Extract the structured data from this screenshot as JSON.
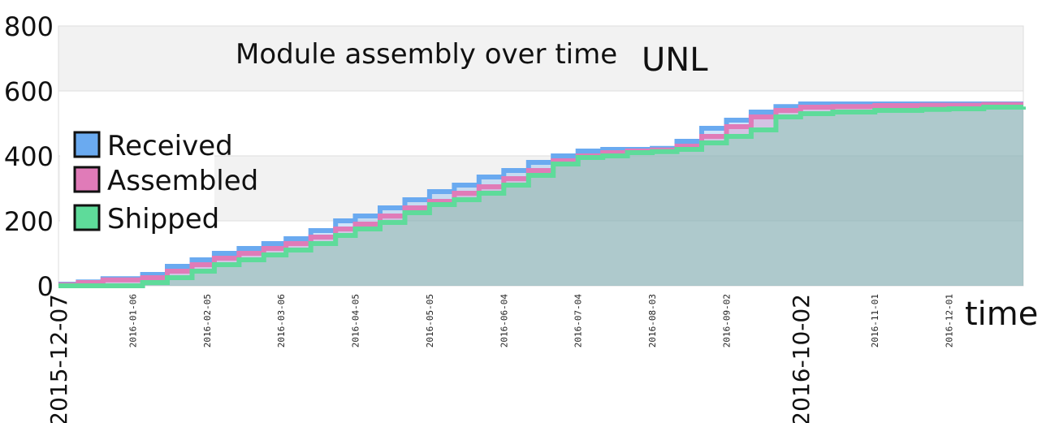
{
  "chart_data": {
    "type": "area",
    "title": "Module assembly over time",
    "subtitle": "UNL",
    "xlabel": "time",
    "ylabel": "",
    "ylim": [
      0,
      800
    ],
    "y_ticks": [
      "0",
      "200",
      "400",
      "600",
      "800"
    ],
    "x_range": [
      "2015-12-07",
      "2016-12-31"
    ],
    "x_ticks": [
      {
        "date": "2015-12-07",
        "label": "2015-12-07",
        "emphasis": true
      },
      {
        "date": "2016-01-06",
        "label": "2016-01-06",
        "emphasis": false
      },
      {
        "date": "2016-02-05",
        "label": "2016-02-05",
        "emphasis": false
      },
      {
        "date": "2016-03-06",
        "label": "2016-03-06",
        "emphasis": false
      },
      {
        "date": "2016-04-05",
        "label": "2016-04-05",
        "emphasis": false
      },
      {
        "date": "2016-05-05",
        "label": "2016-05-05",
        "emphasis": false
      },
      {
        "date": "2016-06-04",
        "label": "2016-06-04",
        "emphasis": false
      },
      {
        "date": "2016-07-04",
        "label": "2016-07-04",
        "emphasis": false
      },
      {
        "date": "2016-08-03",
        "label": "2016-08-03",
        "emphasis": false
      },
      {
        "date": "2016-09-02",
        "label": "2016-09-02",
        "emphasis": false
      },
      {
        "date": "2016-10-02",
        "label": "2016-10-02",
        "emphasis": true
      },
      {
        "date": "2016-11-01",
        "label": "2016-11-01",
        "emphasis": false
      },
      {
        "date": "2016-12-01",
        "label": "2016-12-01",
        "emphasis": false
      }
    ],
    "grid": "horizontal bands",
    "legend_position": "left",
    "series": [
      {
        "name": "Received",
        "color": "#6aaaf0",
        "x": [
          "2015-12-07",
          "2015-12-15",
          "2015-12-25",
          "2016-01-10",
          "2016-01-20",
          "2016-01-30",
          "2016-02-08",
          "2016-02-18",
          "2016-02-28",
          "2016-03-08",
          "2016-03-18",
          "2016-03-28",
          "2016-04-05",
          "2016-04-15",
          "2016-04-25",
          "2016-05-05",
          "2016-05-15",
          "2016-05-25",
          "2016-06-04",
          "2016-06-14",
          "2016-06-24",
          "2016-07-04",
          "2016-07-14",
          "2016-07-24",
          "2016-08-03",
          "2016-08-13",
          "2016-08-23",
          "2016-09-02",
          "2016-09-12",
          "2016-09-22",
          "2016-10-02",
          "2016-10-15",
          "2016-11-01",
          "2016-11-20",
          "2016-12-01",
          "2016-12-15",
          "2016-12-31"
        ],
        "y": [
          5,
          12,
          22,
          35,
          60,
          80,
          100,
          115,
          130,
          145,
          170,
          200,
          215,
          240,
          265,
          290,
          310,
          335,
          355,
          380,
          400,
          415,
          420,
          420,
          423,
          445,
          485,
          510,
          535,
          552,
          560,
          560,
          560,
          560,
          560,
          560,
          560
        ]
      },
      {
        "name": "Assembled",
        "color": "#e07bb8",
        "x": [
          "2015-12-07",
          "2015-12-15",
          "2015-12-25",
          "2016-01-10",
          "2016-01-20",
          "2016-01-30",
          "2016-02-08",
          "2016-02-18",
          "2016-02-28",
          "2016-03-08",
          "2016-03-18",
          "2016-03-28",
          "2016-04-05",
          "2016-04-15",
          "2016-04-25",
          "2016-05-05",
          "2016-05-15",
          "2016-05-25",
          "2016-06-04",
          "2016-06-14",
          "2016-06-24",
          "2016-07-04",
          "2016-07-14",
          "2016-07-24",
          "2016-08-03",
          "2016-08-13",
          "2016-08-23",
          "2016-09-02",
          "2016-09-12",
          "2016-09-22",
          "2016-10-02",
          "2016-10-15",
          "2016-11-01",
          "2016-11-20",
          "2016-12-01",
          "2016-12-15",
          "2016-12-31"
        ],
        "y": [
          3,
          10,
          18,
          25,
          45,
          65,
          85,
          100,
          115,
          130,
          150,
          175,
          190,
          215,
          240,
          260,
          285,
          305,
          330,
          355,
          385,
          400,
          410,
          415,
          418,
          430,
          460,
          490,
          520,
          540,
          550,
          552,
          555,
          556,
          556,
          558,
          558
        ]
      },
      {
        "name": "Shipped",
        "color": "#5edb9a",
        "x": [
          "2015-12-07",
          "2015-12-15",
          "2015-12-25",
          "2016-01-10",
          "2016-01-20",
          "2016-01-30",
          "2016-02-08",
          "2016-02-18",
          "2016-02-28",
          "2016-03-08",
          "2016-03-18",
          "2016-03-28",
          "2016-04-05",
          "2016-04-15",
          "2016-04-25",
          "2016-05-05",
          "2016-05-15",
          "2016-05-25",
          "2016-06-04",
          "2016-06-14",
          "2016-06-24",
          "2016-07-04",
          "2016-07-14",
          "2016-07-24",
          "2016-08-03",
          "2016-08-13",
          "2016-08-23",
          "2016-09-02",
          "2016-09-12",
          "2016-09-22",
          "2016-10-02",
          "2016-10-15",
          "2016-11-01",
          "2016-11-20",
          "2016-12-01",
          "2016-12-15",
          "2016-12-31"
        ],
        "y": [
          0,
          0,
          0,
          10,
          25,
          45,
          65,
          80,
          95,
          110,
          130,
          155,
          175,
          195,
          225,
          250,
          265,
          285,
          310,
          340,
          375,
          395,
          400,
          410,
          413,
          420,
          440,
          460,
          480,
          520,
          530,
          535,
          540,
          543,
          545,
          550,
          552
        ]
      }
    ]
  }
}
